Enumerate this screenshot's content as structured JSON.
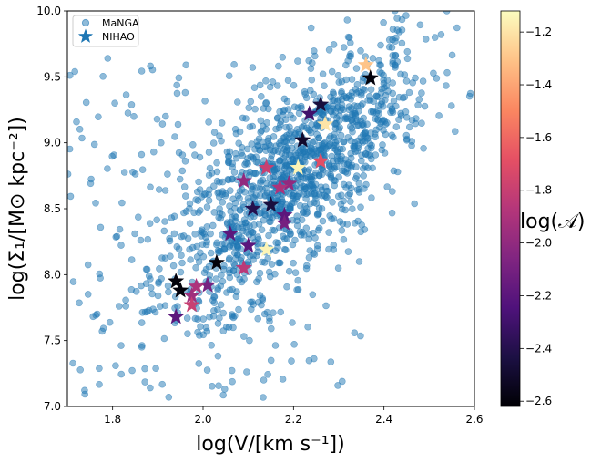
{
  "chart_data": {
    "type": "scatter",
    "xlabel": "log(V/[km s⁻¹])",
    "ylabel": "log(Σ₁/[M⊙ kpc⁻²])",
    "xlim": [
      1.7,
      2.6
    ],
    "ylim": [
      7.0,
      10.0
    ],
    "xticks": [
      "1.8",
      "2.0",
      "2.2",
      "2.4",
      "2.6"
    ],
    "yticks": [
      "7.0",
      "7.5",
      "8.0",
      "8.5",
      "9.0",
      "9.5",
      "10.0"
    ],
    "xtick_values": [
      1.8,
      2.0,
      2.2,
      2.4,
      2.6
    ],
    "ytick_values": [
      7.0,
      7.5,
      8.0,
      8.5,
      9.0,
      9.5,
      10.0
    ],
    "legend": {
      "placement": "top-left",
      "entries": [
        "MaNGA",
        "NIHAO"
      ]
    },
    "manga_color": "#1f77b4",
    "manga_trend": {
      "slope": 2.55,
      "intercept": 3.12,
      "scatter": 0.33,
      "x_mean": 2.2,
      "x_std": 0.15,
      "count": 1500
    },
    "series": [
      {
        "name": "NIHAO",
        "points": [
          {
            "x": 2.36,
            "y": 9.59,
            "c": -1.3
          },
          {
            "x": 2.37,
            "y": 9.49,
            "c": -2.6
          },
          {
            "x": 2.26,
            "y": 9.29,
            "c": -2.45
          },
          {
            "x": 2.235,
            "y": 9.22,
            "c": -2.3
          },
          {
            "x": 2.27,
            "y": 9.14,
            "c": -1.2
          },
          {
            "x": 2.22,
            "y": 9.02,
            "c": -2.5
          },
          {
            "x": 2.26,
            "y": 8.86,
            "c": -1.7
          },
          {
            "x": 2.21,
            "y": 8.81,
            "c": -1.15
          },
          {
            "x": 2.14,
            "y": 8.81,
            "c": -1.8
          },
          {
            "x": 2.09,
            "y": 8.71,
            "c": -2.0
          },
          {
            "x": 2.19,
            "y": 8.69,
            "c": -2.0
          },
          {
            "x": 2.17,
            "y": 8.66,
            "c": -1.9
          },
          {
            "x": 2.15,
            "y": 8.53,
            "c": -2.45
          },
          {
            "x": 2.11,
            "y": 8.5,
            "c": -2.4
          },
          {
            "x": 2.18,
            "y": 8.45,
            "c": -2.2
          },
          {
            "x": 2.18,
            "y": 8.39,
            "c": -2.1
          },
          {
            "x": 2.06,
            "y": 8.31,
            "c": -2.2
          },
          {
            "x": 2.1,
            "y": 8.22,
            "c": -2.2
          },
          {
            "x": 2.14,
            "y": 8.19,
            "c": -1.15
          },
          {
            "x": 2.03,
            "y": 8.09,
            "c": -2.6
          },
          {
            "x": 2.09,
            "y": 8.05,
            "c": -1.85
          },
          {
            "x": 1.94,
            "y": 7.95,
            "c": -2.6
          },
          {
            "x": 1.95,
            "y": 7.88,
            "c": -2.6
          },
          {
            "x": 2.01,
            "y": 7.92,
            "c": -2.1
          },
          {
            "x": 1.985,
            "y": 7.91,
            "c": -1.9
          },
          {
            "x": 1.975,
            "y": 7.84,
            "c": -1.95
          },
          {
            "x": 1.975,
            "y": 7.77,
            "c": -1.8
          },
          {
            "x": 1.94,
            "y": 7.68,
            "c": -2.2
          }
        ]
      }
    ],
    "colorbar": {
      "label": "log(𝒜)",
      "range": [
        -2.62,
        -1.12
      ],
      "ticks": [
        "−1.2",
        "−1.4",
        "−1.6",
        "−1.8",
        "−2.0",
        "−2.2",
        "−2.4",
        "−2.6"
      ],
      "tick_values": [
        -1.2,
        -1.4,
        -1.6,
        -1.8,
        -2.0,
        -2.2,
        -2.4,
        -2.6
      ],
      "colormap": "magma"
    }
  }
}
